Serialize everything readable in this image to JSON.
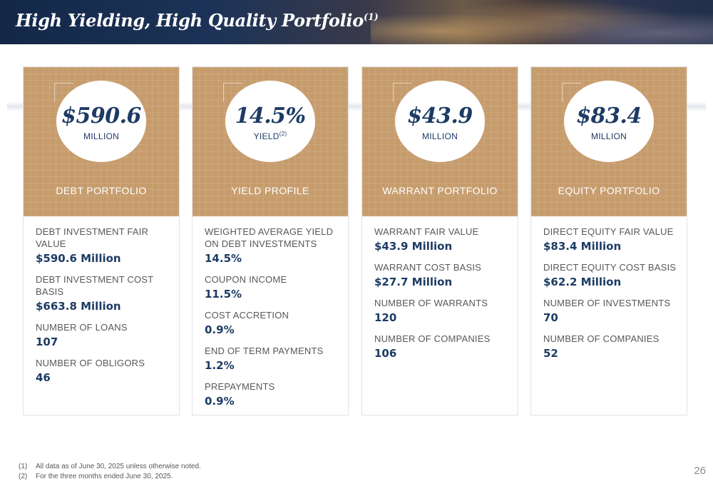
{
  "header": {
    "title": "High Yielding, High Quality Portfolio",
    "title_note": "(1)"
  },
  "cards": [
    {
      "big": "$590.6",
      "unit": "MILLION",
      "unit_note": "",
      "label": "DEBT PORTFOLIO",
      "items": [
        {
          "label": "DEBT INVESTMENT FAIR VALUE",
          "value": "$590.6 Million"
        },
        {
          "label": "DEBT INVESTMENT COST BASIS",
          "value": "$663.8 Million"
        },
        {
          "label": "NUMBER OF LOANS",
          "value": "107"
        },
        {
          "label": "NUMBER OF OBLIGORS",
          "value": "46"
        }
      ]
    },
    {
      "big": "14.5%",
      "unit": "YIELD",
      "unit_note": "(2)",
      "label": "YIELD PROFILE",
      "items": [
        {
          "label": "WEIGHTED AVERAGE YIELD ON DEBT INVESTMENTS",
          "value": "14.5%"
        },
        {
          "label": "COUPON INCOME",
          "value": "11.5%"
        },
        {
          "label": "COST ACCRETION",
          "value": "0.9%"
        },
        {
          "label": "END OF TERM PAYMENTS",
          "value": "1.2%"
        },
        {
          "label": "PREPAYMENTS",
          "value": "0.9%"
        }
      ]
    },
    {
      "big": "$43.9",
      "unit": "MILLION",
      "unit_note": "",
      "label": "WARRANT PORTFOLIO",
      "items": [
        {
          "label": "WARRANT FAIR VALUE",
          "value": "$43.9 Million"
        },
        {
          "label": "WARRANT COST BASIS",
          "value": "$27.7 Million"
        },
        {
          "label": "NUMBER OF WARRANTS",
          "value": "120"
        },
        {
          "label": "NUMBER OF COMPANIES",
          "value": "106"
        }
      ]
    },
    {
      "big": "$83.4",
      "unit": "MILLION",
      "unit_note": "",
      "label": "EQUITY PORTFOLIO",
      "items": [
        {
          "label": "DIRECT EQUITY FAIR VALUE",
          "value": "$83.4 Million"
        },
        {
          "label": "DIRECT EQUITY COST BASIS",
          "value": "$62.2 Million"
        },
        {
          "label": "NUMBER OF INVESTMENTS",
          "value": "70"
        },
        {
          "label": "NUMBER OF COMPANIES",
          "value": "52"
        }
      ]
    }
  ],
  "footnotes": [
    {
      "num": "(1)",
      "text": "All data as of June 30, 2025 unless otherwise noted."
    },
    {
      "num": "(2)",
      "text": "For the three months ended June 30, 2025."
    }
  ],
  "page_number": "26",
  "colors": {
    "navy": "#1d3b64",
    "gold": "#c69c6d",
    "gray_text": "#57585a"
  }
}
